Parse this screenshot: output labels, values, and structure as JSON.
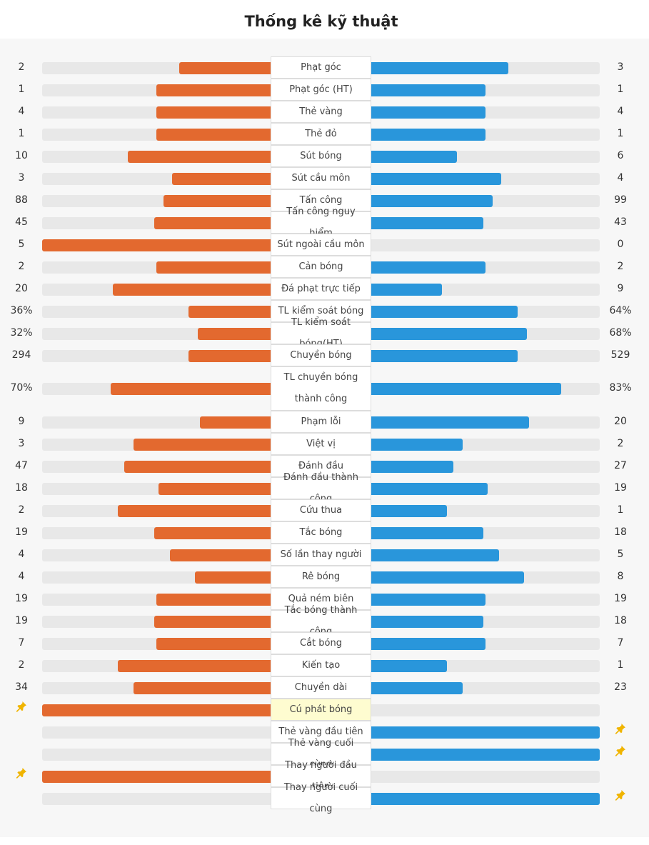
{
  "title": "Thống kê kỹ thuật",
  "colors": {
    "home": "#e3692f",
    "away": "#2996db",
    "track": "#e8e8e8",
    "highlight": "#fefcd0"
  },
  "stats": [
    {
      "label": "Phạt góc",
      "home": "2",
      "away": "3",
      "home_frac": 0.4,
      "away_frac": 0.6
    },
    {
      "label": "Phạt góc (HT)",
      "home": "1",
      "away": "1",
      "home_frac": 0.5,
      "away_frac": 0.5
    },
    {
      "label": "Thẻ vàng",
      "home": "4",
      "away": "4",
      "home_frac": 0.5,
      "away_frac": 0.5
    },
    {
      "label": "Thẻ đỏ",
      "home": "1",
      "away": "1",
      "home_frac": 0.5,
      "away_frac": 0.5
    },
    {
      "label": "Sút bóng",
      "home": "10",
      "away": "6",
      "home_frac": 0.625,
      "away_frac": 0.375
    },
    {
      "label": "Sút cầu môn",
      "home": "3",
      "away": "4",
      "home_frac": 0.43,
      "away_frac": 0.57
    },
    {
      "label": "Tấn công",
      "home": "88",
      "away": "99",
      "home_frac": 0.47,
      "away_frac": 0.53
    },
    {
      "label": "Tấn công nguy hiểm",
      "home": "45",
      "away": "43",
      "home_frac": 0.51,
      "away_frac": 0.49
    },
    {
      "label": "Sút ngoài cầu môn",
      "home": "5",
      "away": "0",
      "home_frac": 1.0,
      "away_frac": 0.0
    },
    {
      "label": "Cản bóng",
      "home": "2",
      "away": "2",
      "home_frac": 0.5,
      "away_frac": 0.5
    },
    {
      "label": "Đá phạt trực tiếp",
      "home": "20",
      "away": "9",
      "home_frac": 0.69,
      "away_frac": 0.31
    },
    {
      "label": "TL kiểm soát bóng",
      "home": "36%",
      "away": "64%",
      "home_frac": 0.36,
      "away_frac": 0.64
    },
    {
      "label": "TL kiểm soát bóng(HT)",
      "home": "32%",
      "away": "68%",
      "home_frac": 0.32,
      "away_frac": 0.68
    },
    {
      "label": "Chuyền bóng",
      "home": "294",
      "away": "529",
      "home_frac": 0.36,
      "away_frac": 0.64
    },
    {
      "label": "TL chuyền bóng thành công",
      "home": "70%",
      "away": "83%",
      "home_frac": 0.7,
      "away_frac": 0.83,
      "tall": true
    },
    {
      "label": "Phạm lỗi",
      "home": "9",
      "away": "20",
      "home_frac": 0.31,
      "away_frac": 0.69
    },
    {
      "label": "Việt vị",
      "home": "3",
      "away": "2",
      "home_frac": 0.6,
      "away_frac": 0.4
    },
    {
      "label": "Đánh đầu",
      "home": "47",
      "away": "27",
      "home_frac": 0.64,
      "away_frac": 0.36
    },
    {
      "label": "Đánh đầu thành công",
      "home": "18",
      "away": "19",
      "home_frac": 0.49,
      "away_frac": 0.51
    },
    {
      "label": "Cứu thua",
      "home": "2",
      "away": "1",
      "home_frac": 0.67,
      "away_frac": 0.33
    },
    {
      "label": "Tắc bóng",
      "home": "19",
      "away": "18",
      "home_frac": 0.51,
      "away_frac": 0.49
    },
    {
      "label": "Số lần thay người",
      "home": "4",
      "away": "5",
      "home_frac": 0.44,
      "away_frac": 0.56
    },
    {
      "label": "Rê bóng",
      "home": "4",
      "away": "8",
      "home_frac": 0.33,
      "away_frac": 0.67
    },
    {
      "label": "Quả ném biên",
      "home": "19",
      "away": "19",
      "home_frac": 0.5,
      "away_frac": 0.5
    },
    {
      "label": "Tắc bóng thành công",
      "home": "19",
      "away": "18",
      "home_frac": 0.51,
      "away_frac": 0.49
    },
    {
      "label": "Cắt bóng",
      "home": "7",
      "away": "7",
      "home_frac": 0.5,
      "away_frac": 0.5
    },
    {
      "label": "Kiến tạo",
      "home": "2",
      "away": "1",
      "home_frac": 0.67,
      "away_frac": 0.33
    },
    {
      "label": "Chuyền dài",
      "home": "34",
      "away": "23",
      "home_frac": 0.6,
      "away_frac": 0.4
    },
    {
      "label": "Cú phát bóng",
      "home": "",
      "away": "",
      "home_frac": 1.0,
      "away_frac": 0.0,
      "pin": "home",
      "highlight": true
    },
    {
      "label": "Thẻ vàng đầu tiên",
      "home": "",
      "away": "",
      "home_frac": 0.0,
      "away_frac": 1.0,
      "pin": "away"
    },
    {
      "label": "Thẻ vàng cuối cùng",
      "home": "",
      "away": "",
      "home_frac": 0.0,
      "away_frac": 1.0,
      "pin": "away"
    },
    {
      "label": "Thay người đầu tiên",
      "home": "",
      "away": "",
      "home_frac": 1.0,
      "away_frac": 0.0,
      "pin": "home"
    },
    {
      "label": "Thay người cuối cùng",
      "home": "",
      "away": "",
      "home_frac": 0.0,
      "away_frac": 1.0,
      "pin": "away"
    }
  ]
}
